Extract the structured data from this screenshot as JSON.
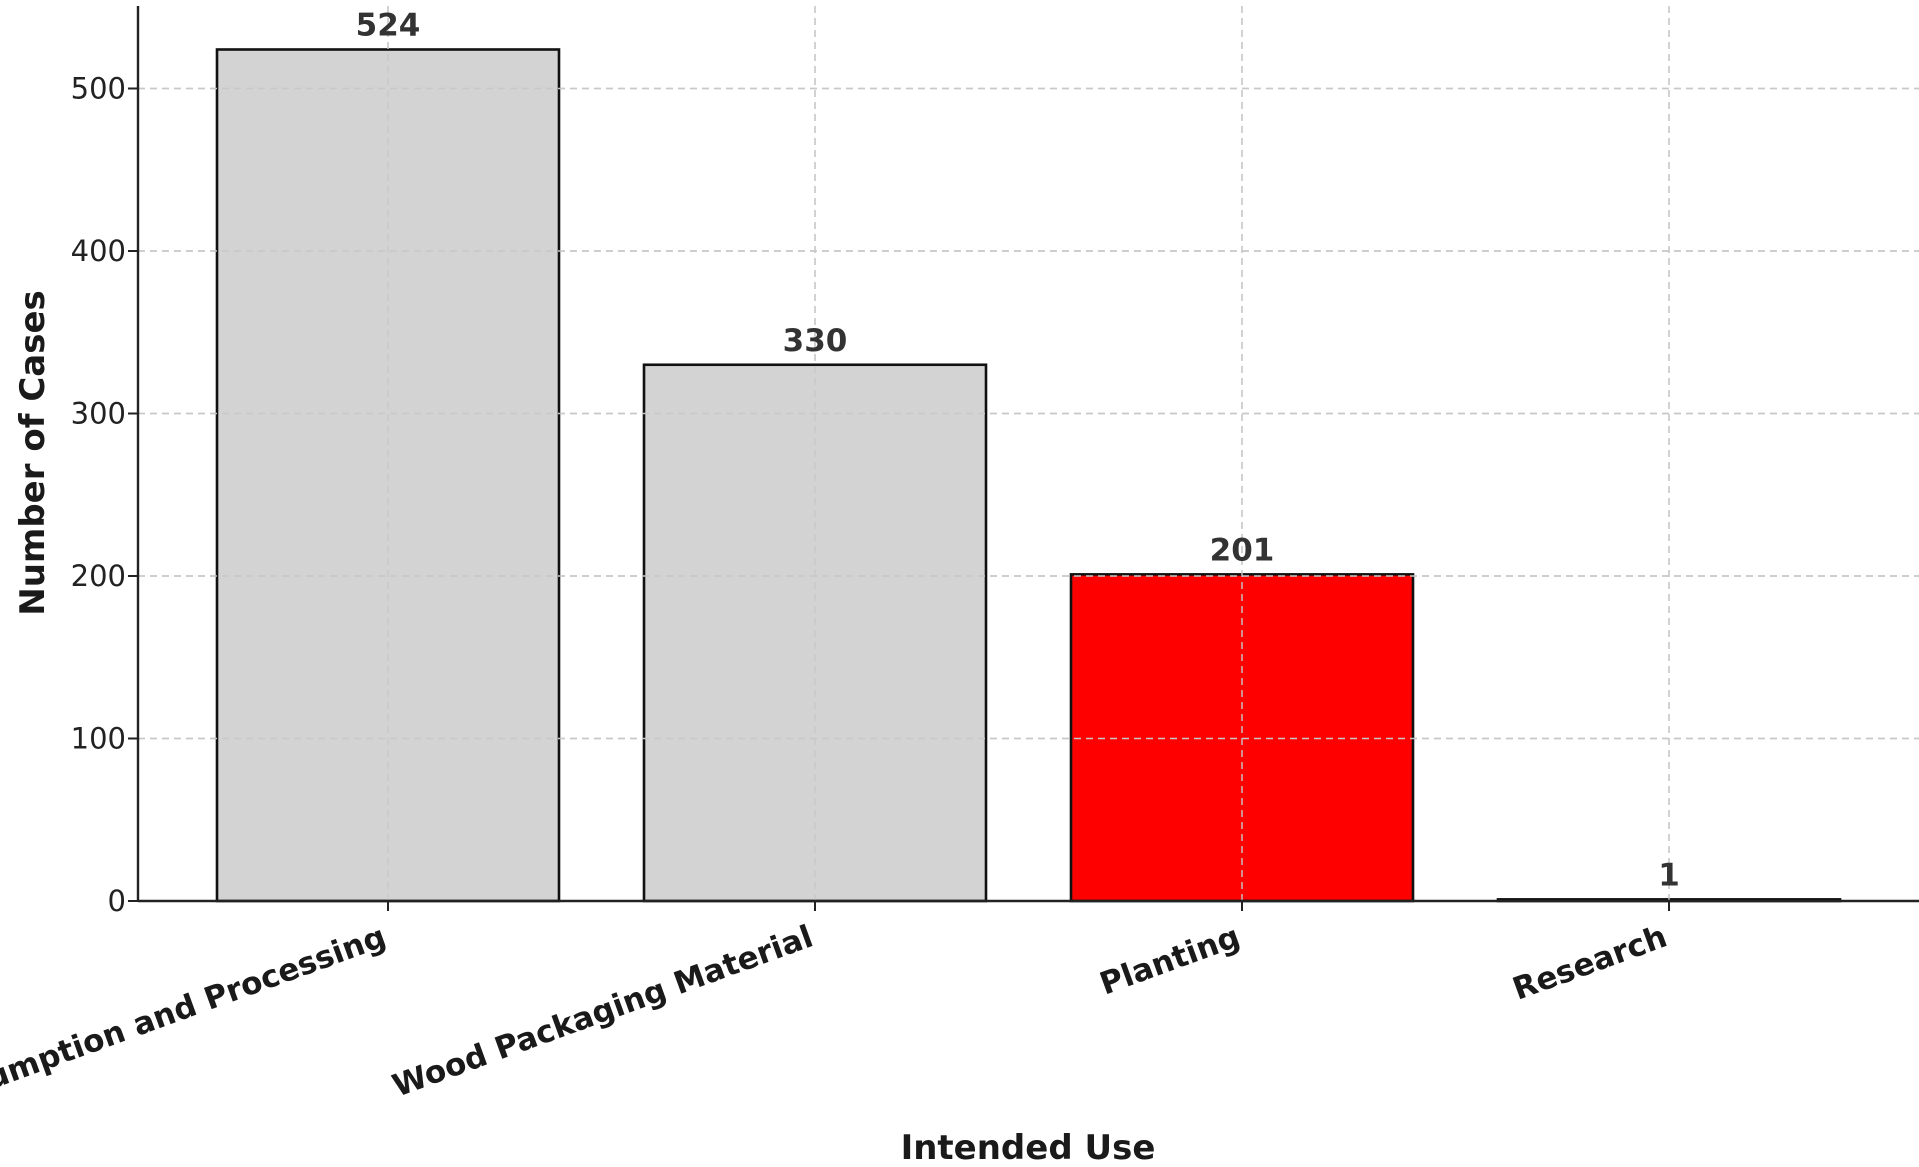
{
  "chart_data": {
    "type": "bar",
    "title": "",
    "xlabel": "Intended Use",
    "ylabel": "Number of Cases",
    "categories": [
      "Consumption and Processing",
      "Wood Packaging Material",
      "Planting",
      "Research"
    ],
    "values": [
      524,
      330,
      201,
      1
    ],
    "bar_colors": [
      "#d3d3d3",
      "#d3d3d3",
      "#ff0000",
      "#d3d3d3"
    ],
    "ylim": [
      0,
      550
    ],
    "yticks": [
      0,
      100,
      200,
      300,
      400,
      500
    ],
    "grid": true,
    "grid_style": "dashed",
    "legend": "none"
  }
}
